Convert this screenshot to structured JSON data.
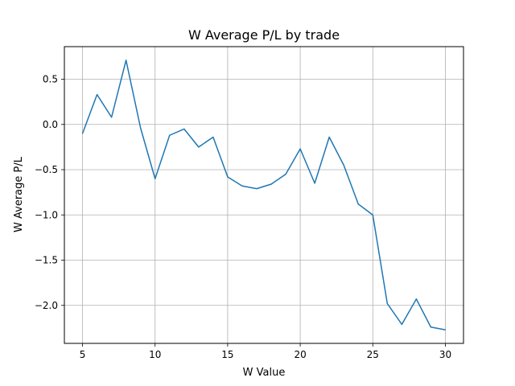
{
  "chart_data": {
    "type": "line",
    "title": "W Average P/L by trade",
    "xlabel": "W Value",
    "ylabel": "W Average P/L",
    "xlim": [
      3.75,
      31.25
    ],
    "ylim": [
      -2.42,
      0.86
    ],
    "xticks": [
      5,
      10,
      15,
      20,
      25,
      30
    ],
    "xtick_labels": [
      "5",
      "10",
      "15",
      "20",
      "25",
      "30"
    ],
    "yticks": [
      0.5,
      0.0,
      -0.5,
      -1.0,
      -1.5,
      -2.0
    ],
    "ytick_labels": [
      "0.5",
      "0.0",
      "−0.5",
      "−1.0",
      "−1.5",
      "−2.0"
    ],
    "grid": true,
    "series": [
      {
        "color": "#1f77b4",
        "x": [
          5,
          6,
          7,
          8,
          9,
          10,
          11,
          12,
          13,
          14,
          15,
          16,
          17,
          18,
          19,
          20,
          21,
          22,
          23,
          24,
          25,
          26,
          27,
          28,
          29,
          30
        ],
        "y": [
          -0.1,
          0.33,
          0.08,
          0.71,
          -0.04,
          -0.6,
          -0.12,
          -0.05,
          -0.25,
          -0.14,
          -0.58,
          -0.68,
          -0.71,
          -0.66,
          -0.55,
          -0.27,
          -0.65,
          -0.14,
          -0.45,
          -0.88,
          -1.0,
          -1.98,
          -2.21,
          -1.93,
          -2.24,
          -2.27
        ]
      }
    ]
  }
}
